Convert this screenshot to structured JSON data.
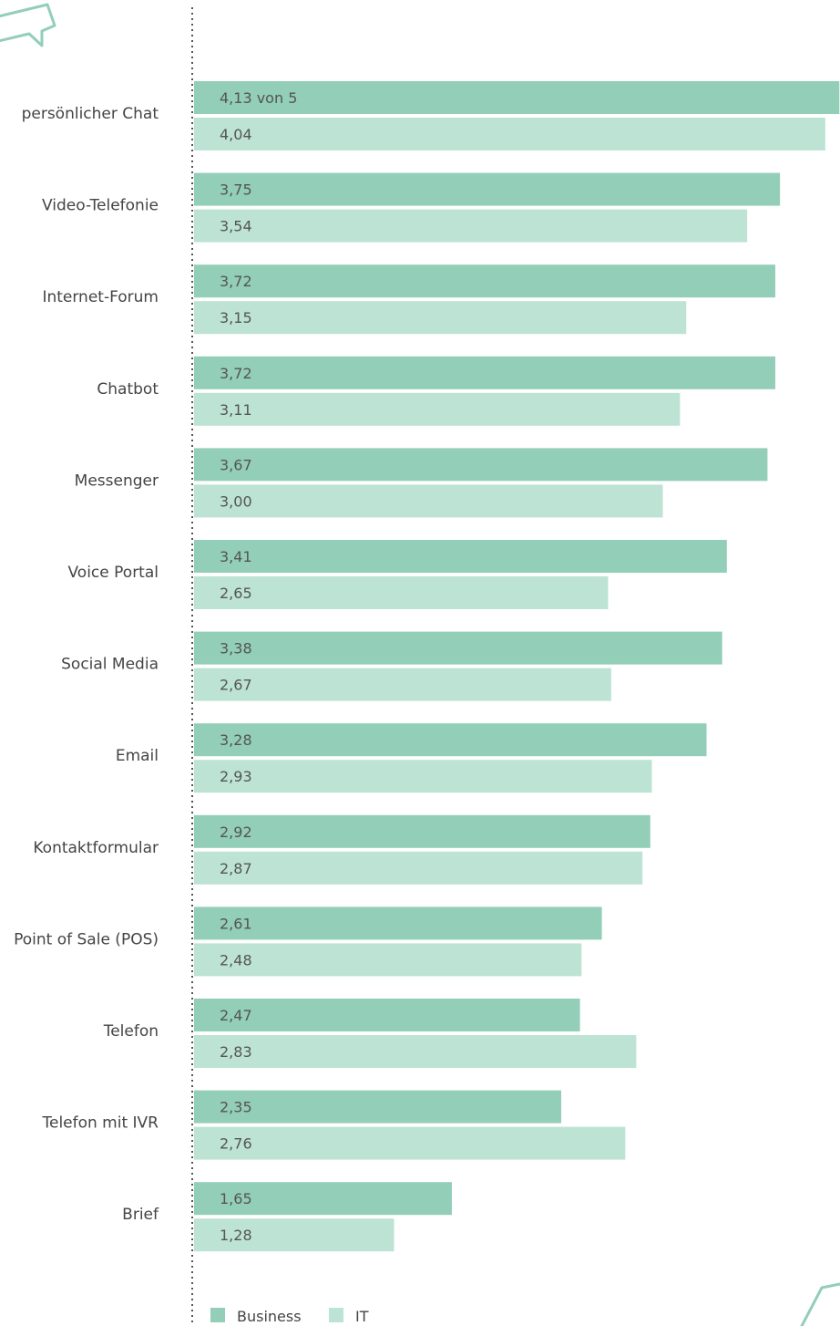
{
  "chart_data": {
    "type": "bar",
    "orientation": "horizontal",
    "categories": [
      "persönlicher Chat",
      "Video-Telefonie",
      "Internet-Forum",
      "Chatbot",
      "Messenger",
      "Voice Portal",
      "Social Media",
      "Email",
      "Kontaktformular",
      "Point of Sale (POS)",
      "Telefon",
      "Telefon mit IVR",
      "Brief"
    ],
    "series": [
      {
        "name": "Business",
        "color": "#93ceb8",
        "values": [
          4.13,
          3.75,
          3.72,
          3.72,
          3.67,
          3.41,
          3.38,
          3.28,
          2.92,
          2.61,
          2.47,
          2.35,
          1.65
        ],
        "value_labels": [
          "4,13 von 5",
          "3,75",
          "3,72",
          "3,72",
          "3,67",
          "3,41",
          "3,38",
          "3,28",
          "2,92",
          "2,61",
          "2,47",
          "2,35",
          "1,65"
        ]
      },
      {
        "name": "IT",
        "color": "#bde3d4",
        "values": [
          4.04,
          3.54,
          3.15,
          3.11,
          3.0,
          2.65,
          2.67,
          2.93,
          2.87,
          2.48,
          2.83,
          2.76,
          1.28
        ],
        "value_labels": [
          "4,04",
          "3,54",
          "3,15",
          "3,11",
          "3,00",
          "2,65",
          "2,67",
          "2,93",
          "2,87",
          "2,48",
          "2,83",
          "2,76",
          "1,28"
        ]
      }
    ],
    "xlim": [
      0,
      5
    ],
    "title": "",
    "xlabel": "",
    "ylabel": "",
    "grid": false,
    "legend": "bottom-left"
  },
  "colors": {
    "axis": "#555555",
    "decoration": "#93ceb8"
  }
}
